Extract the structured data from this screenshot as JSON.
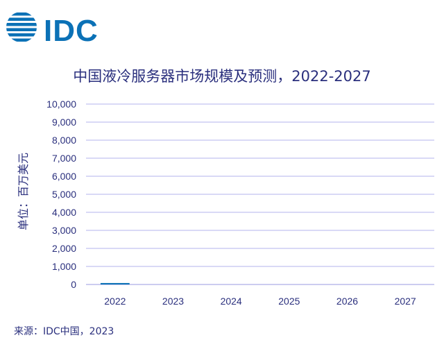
{
  "logo": {
    "text": "IDC",
    "color": "#0b71b6"
  },
  "chart_data": {
    "type": "bar",
    "title": "中国液冷服务器市场规模及预测，2022-2027",
    "xlabel": "",
    "ylabel": "单位：百万美元",
    "categories": [
      "2022",
      "2023",
      "2024",
      "2025",
      "2026",
      "2027"
    ],
    "values": [
      80,
      0,
      0,
      0,
      0,
      0
    ],
    "ylim": [
      0,
      10000
    ],
    "yticks": [
      "0",
      "1,000",
      "2,000",
      "3,000",
      "4,000",
      "5,000",
      "6,000",
      "7,000",
      "8,000",
      "9,000",
      "10,000"
    ],
    "grid": true,
    "bar_color": "#0b71b6",
    "grid_color": "#b3b3ee",
    "text_color": "#2a2f7d"
  },
  "footer": {
    "source": "来源：IDC中国，2023"
  }
}
